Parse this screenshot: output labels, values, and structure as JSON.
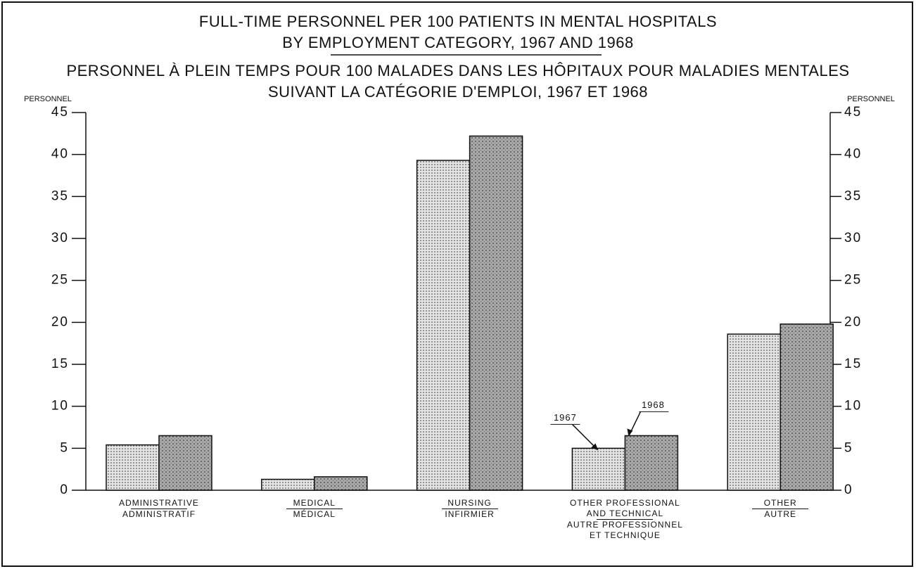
{
  "chart_data": {
    "type": "bar",
    "title": "FULL-TIME PERSONNEL PER 100 PATIENTS IN MENTAL HOSPITALS",
    "subtitle": "BY EMPLOYMENT CATEGORY, 1967 AND 1968",
    "title_fr": "PERSONNEL À PLEIN TEMPS POUR 100 MALADES DANS LES HÔPITAUX POUR MALADIES MENTALES",
    "subtitle_fr": "SUIVANT LA CATÉGORIE D'EMPLOI, 1967 ET 1968",
    "y_label": "PERSONNEL",
    "y2_label": "PERSONNEL",
    "categories": [
      "ADMINISTRATIVE",
      "MEDICAL",
      "NURSING",
      "OTHER PROFESSIONAL AND TECHNICAL",
      "OTHER"
    ],
    "categories_fr": [
      "ADMINISTRATIF",
      "MÉDICAL",
      "INFIRMIER",
      "AUTRE PROFESSIONNEL ET TECHNIQUE",
      "AUTRE"
    ],
    "series": [
      {
        "name": "1967",
        "color": "#e4e4e4",
        "values": [
          5.4,
          1.3,
          39.3,
          5.0,
          18.6
        ]
      },
      {
        "name": "1968",
        "color": "#a9a9a9",
        "values": [
          6.5,
          1.6,
          42.2,
          6.5,
          19.8
        ]
      }
    ],
    "ylim": [
      0,
      45
    ],
    "yticks": [
      0,
      5,
      10,
      15,
      20,
      25,
      30,
      35,
      40,
      45
    ],
    "y2lim": [
      0,
      45
    ],
    "y2ticks": [
      0,
      5,
      10,
      15,
      20,
      25,
      30,
      35,
      40,
      45
    ]
  }
}
